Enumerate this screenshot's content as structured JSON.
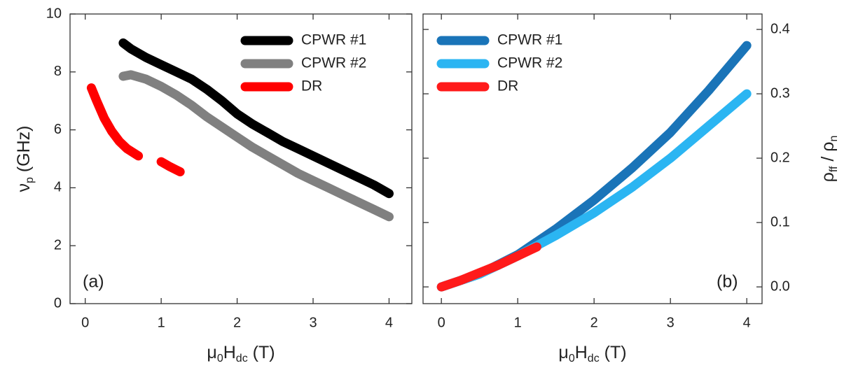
{
  "chart_data": [
    {
      "type": "line",
      "xlabel": [
        "μ",
        "0",
        "H",
        "dc",
        "  (T)"
      ],
      "ylabel": [
        "ν",
        "p",
        "  (GHz)"
      ],
      "annotation": "(a)",
      "legend": "upper right",
      "y_axis_position": "left",
      "xlim": [
        -0.2,
        4.3
      ],
      "xticks": [
        0,
        1,
        2,
        3,
        4
      ],
      "ylim": [
        0,
        10
      ],
      "yticks": [
        0,
        2,
        4,
        6,
        8,
        10
      ],
      "series": [
        {
          "name": "CPWR #1",
          "color": "#000000",
          "x": [
            0.5,
            0.6,
            0.8,
            1.0,
            1.2,
            1.4,
            1.6,
            1.8,
            2.0,
            2.2,
            2.4,
            2.6,
            2.8,
            3.0,
            3.2,
            3.4,
            3.6,
            3.8,
            4.0
          ],
          "values": [
            9.0,
            8.8,
            8.5,
            8.25,
            8.0,
            7.75,
            7.4,
            7.0,
            6.55,
            6.2,
            5.9,
            5.6,
            5.35,
            5.1,
            4.85,
            4.6,
            4.35,
            4.1,
            3.8
          ]
        },
        {
          "name": "CPWR #2",
          "color": "#808080",
          "x": [
            0.5,
            0.6,
            0.8,
            1.0,
            1.2,
            1.4,
            1.6,
            1.8,
            2.0,
            2.2,
            2.4,
            2.6,
            2.8,
            3.0,
            3.2,
            3.4,
            3.6,
            3.8,
            4.0
          ],
          "values": [
            7.85,
            7.9,
            7.75,
            7.5,
            7.2,
            6.85,
            6.45,
            6.1,
            5.75,
            5.4,
            5.1,
            4.8,
            4.5,
            4.25,
            4.0,
            3.75,
            3.5,
            3.25,
            3.0
          ]
        },
        {
          "name": "DR",
          "color": "#ff0000",
          "x": [
            0.08,
            0.15,
            0.25,
            0.35,
            0.45,
            0.55,
            0.7,
            0.85,
            1.0,
            1.1,
            1.25
          ],
          "values": [
            7.45,
            7.0,
            6.4,
            5.95,
            5.6,
            5.35,
            5.1,
            null,
            4.9,
            4.75,
            4.55
          ]
        }
      ]
    },
    {
      "type": "line",
      "xlabel": [
        "μ",
        "0",
        "H",
        "dc",
        "  (T)"
      ],
      "ylabel": [
        "ρ",
        "ff",
        " / ρ",
        "n"
      ],
      "annotation": "(b)",
      "legend": "upper left",
      "y_axis_position": "right",
      "xlim": [
        -0.24,
        4.2
      ],
      "xticks": [
        0,
        1,
        2,
        3,
        4
      ],
      "ylim": [
        -0.026,
        0.424
      ],
      "yticks": [
        {
          "value": 0,
          "label": "0.0"
        },
        0.1,
        0.2,
        0.3,
        0.4
      ],
      "series": [
        {
          "name": "CPWR #1",
          "color": "#1a74b8",
          "x": [
            0,
            0.5,
            1.0,
            1.5,
            2.0,
            2.5,
            3.0,
            3.5,
            4.0
          ],
          "values": [
            0,
            0.02,
            0.05,
            0.09,
            0.135,
            0.185,
            0.24,
            0.305,
            0.375
          ]
        },
        {
          "name": "CPWR #2",
          "color": "#2bb5f2",
          "x": [
            0,
            0.5,
            1.0,
            1.5,
            2.0,
            2.5,
            3.0,
            3.5,
            4.0
          ],
          "values": [
            0,
            0.02,
            0.048,
            0.08,
            0.115,
            0.155,
            0.2,
            0.25,
            0.3
          ]
        },
        {
          "name": "DR",
          "color": "#ff1a1a",
          "x": [
            0,
            0.25,
            0.5,
            0.75,
            1.0,
            1.25
          ],
          "values": [
            0,
            0.01,
            0.022,
            0.034,
            0.048,
            0.062
          ]
        }
      ]
    }
  ]
}
